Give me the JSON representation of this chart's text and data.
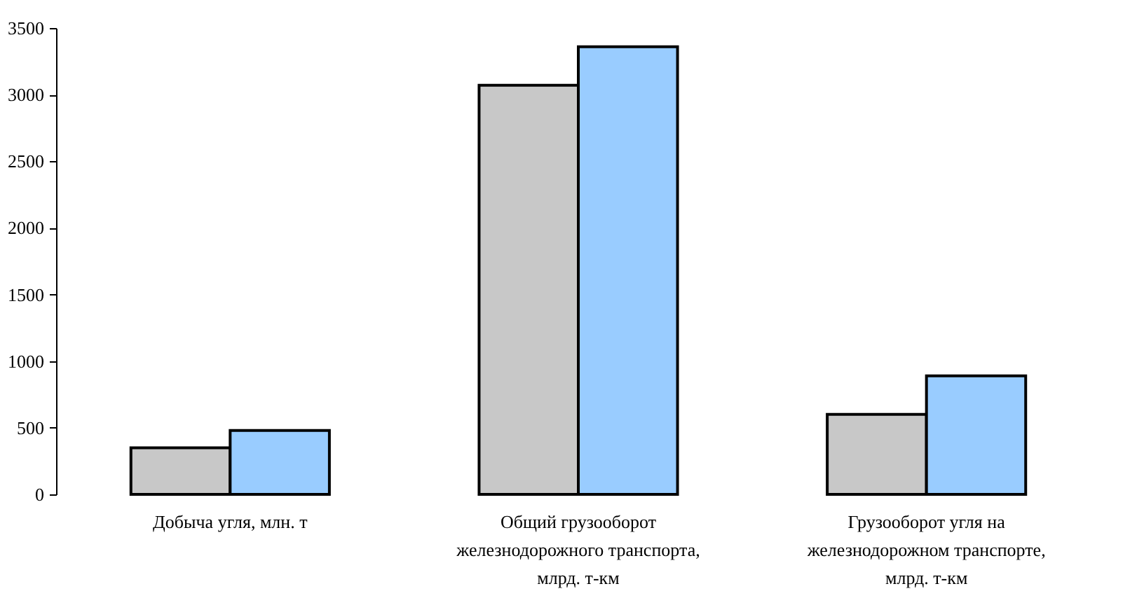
{
  "chart_data": {
    "type": "bar",
    "categories": [
      "Добыча угля, млн. т",
      "Общий грузооборот железнодорожного транспорта, млрд. т-км",
      "Грузооборот угля на железнодорожном транспорте, млрд. т-км"
    ],
    "series": [
      {
        "color": "#c8c8c8",
        "values": [
          350,
          3070,
          600
        ]
      },
      {
        "color": "#99ccff",
        "values": [
          480,
          3360,
          890
        ]
      }
    ],
    "ylim": [
      0,
      3500
    ],
    "yticks": [
      0,
      500,
      1000,
      1500,
      2000,
      2500,
      3000,
      3500
    ],
    "grid": false,
    "legend": false
  }
}
